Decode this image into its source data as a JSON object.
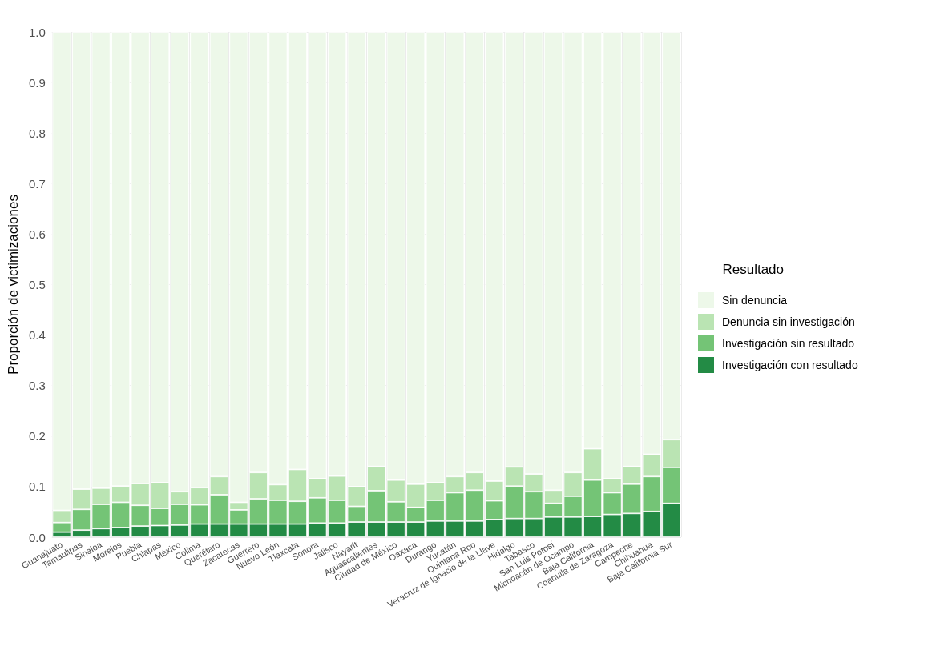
{
  "chart_data": {
    "type": "bar",
    "stacked": true,
    "ylabel": "Proporción de victimizaciones",
    "legend_title": "Resultado",
    "legend": "right",
    "grid": true,
    "categories": [
      "Guanajuato",
      "Tamaulipas",
      "Sinaloa",
      "Morelos",
      "Puebla",
      "Chiapas",
      "México",
      "Colima",
      "Querétaro",
      "Zacatecas",
      "Guerrero",
      "Nuevo León",
      "Tlaxcala",
      "Sonora",
      "Jalisco",
      "Nayarit",
      "Aguascalientes",
      "Ciudad de México",
      "Oaxaca",
      "Durango",
      "Yucatán",
      "Quintana Roo",
      "Veracruz de Ignacio de la Llave",
      "Hidalgo",
      "Tabasco",
      "San Luis Potosí",
      "Michoacán de Ocampo",
      "Baja California",
      "Coahuila de Zaragoza",
      "Campeche",
      "Chihuahua",
      "Baja California Sur"
    ],
    "ylim": [
      0,
      1
    ],
    "yticks": [
      {
        "value": 0,
        "label": "0.0"
      },
      0.1,
      0.2,
      0.3,
      0.4,
      0.5,
      0.6,
      0.7,
      0.8,
      0.9,
      {
        "value": 1,
        "label": "1.0"
      }
    ],
    "series": [
      {
        "name": "Investigación con resultado",
        "color": "#238b45",
        "values": [
          0.01,
          0.014,
          0.017,
          0.019,
          0.022,
          0.023,
          0.024,
          0.026,
          0.026,
          0.026,
          0.026,
          0.026,
          0.026,
          0.028,
          0.028,
          0.03,
          0.03,
          0.03,
          0.03,
          0.032,
          0.032,
          0.032,
          0.035,
          0.037,
          0.037,
          0.04,
          0.04,
          0.041,
          0.045,
          0.047,
          0.051,
          0.067
        ]
      },
      {
        "name": "Investigación sin resultado",
        "color": "#74c476",
        "values": [
          0.019,
          0.041,
          0.048,
          0.05,
          0.041,
          0.034,
          0.041,
          0.038,
          0.058,
          0.028,
          0.05,
          0.047,
          0.045,
          0.05,
          0.045,
          0.031,
          0.062,
          0.04,
          0.029,
          0.041,
          0.056,
          0.061,
          0.037,
          0.064,
          0.053,
          0.027,
          0.041,
          0.072,
          0.043,
          0.058,
          0.069,
          0.071
        ]
      },
      {
        "name": "Denuncia sin investigación",
        "color": "#bae4b3",
        "values": [
          0.024,
          0.04,
          0.032,
          0.032,
          0.043,
          0.051,
          0.025,
          0.034,
          0.036,
          0.015,
          0.052,
          0.031,
          0.063,
          0.038,
          0.048,
          0.039,
          0.048,
          0.043,
          0.046,
          0.035,
          0.032,
          0.035,
          0.039,
          0.038,
          0.035,
          0.026,
          0.047,
          0.062,
          0.028,
          0.035,
          0.044,
          0.055
        ]
      },
      {
        "name": "Sin denuncia",
        "color": "#edf8e9",
        "values": [
          0.947,
          0.905,
          0.903,
          0.899,
          0.894,
          0.892,
          0.91,
          0.902,
          0.88,
          0.931,
          0.872,
          0.896,
          0.866,
          0.884,
          0.879,
          0.9,
          0.86,
          0.887,
          0.895,
          0.892,
          0.88,
          0.872,
          0.889,
          0.861,
          0.875,
          0.907,
          0.872,
          0.825,
          0.884,
          0.86,
          0.836,
          0.807
        ]
      }
    ]
  }
}
